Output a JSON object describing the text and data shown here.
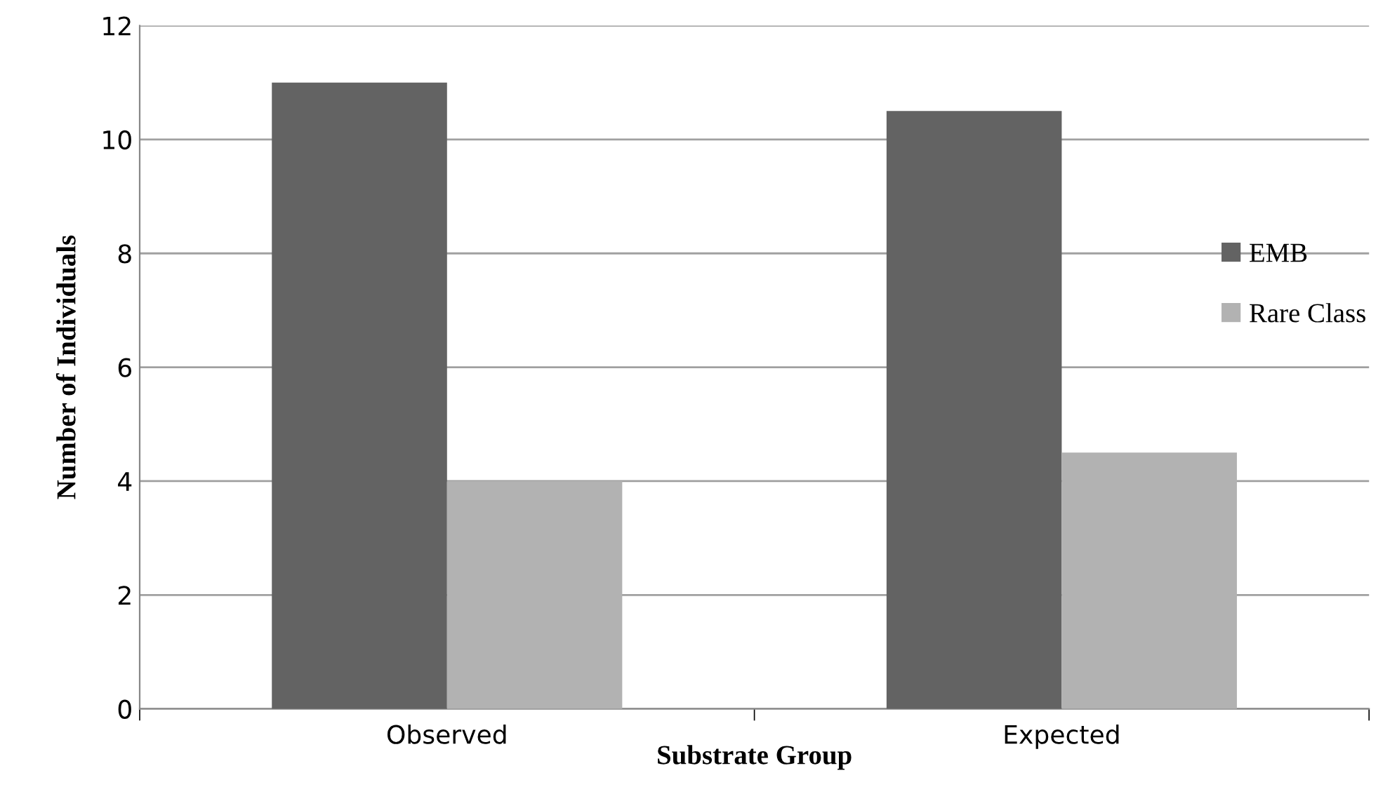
{
  "chart_data": {
    "type": "bar",
    "xlabel": "Substrate Group",
    "ylabel": "Number of Individuals",
    "categories": [
      "Observed",
      "Expected"
    ],
    "series": [
      {
        "name": "EMB",
        "color": "#636363",
        "values": [
          11,
          10.5
        ]
      },
      {
        "name": "Rare Class",
        "color": "#b2b2b2",
        "values": [
          4,
          4.5
        ]
      }
    ],
    "ylim": [
      0,
      12
    ],
    "yticks": [
      0,
      2,
      4,
      6,
      8,
      10,
      12
    ],
    "grid": "y",
    "legend": "right"
  }
}
